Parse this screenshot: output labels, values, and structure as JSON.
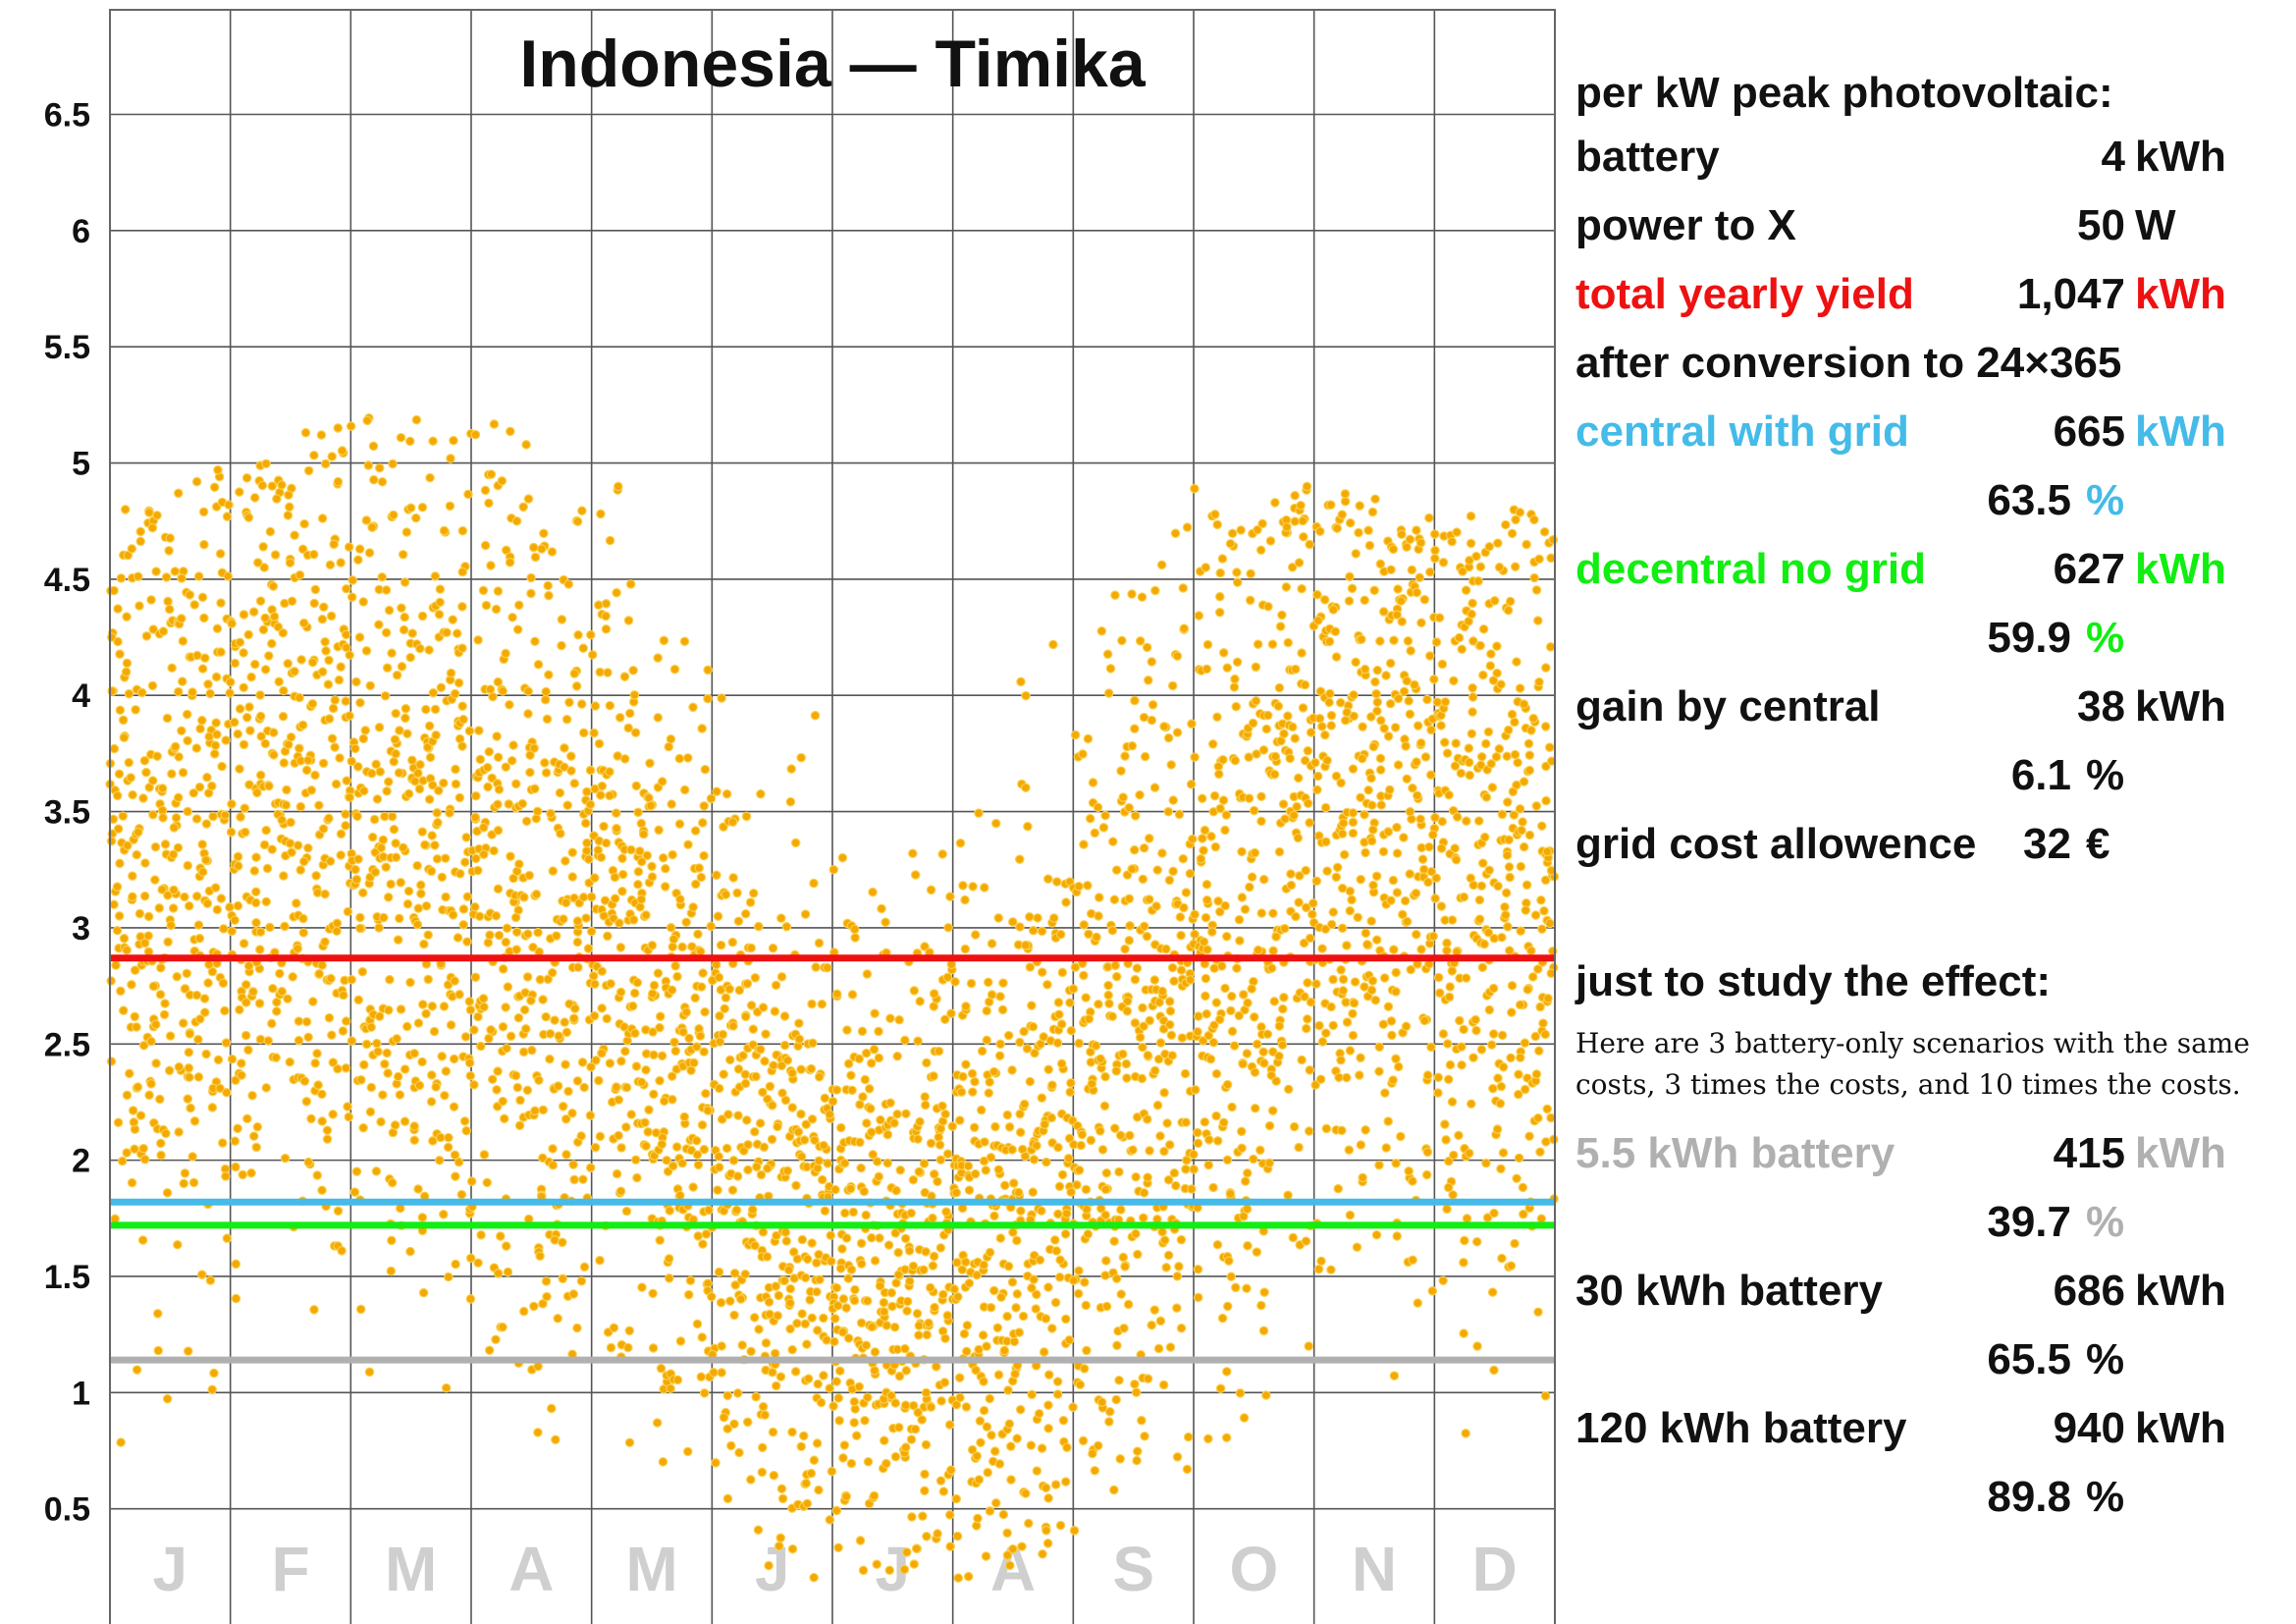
{
  "chart_data": {
    "type": "scatter",
    "title": "Indonesia — Timika",
    "xlabel": "",
    "ylabel": "",
    "x_range": [
      0,
      365
    ],
    "ylim": [
      0,
      6.95
    ],
    "y_ticks": [
      "0.5",
      "1",
      "1.5",
      "2",
      "2.5",
      "3",
      "3.5",
      "4",
      "4.5",
      "5",
      "5.5",
      "6",
      "6.5"
    ],
    "y_tick_values": [
      0.5,
      1,
      1.5,
      2,
      2.5,
      3,
      3.5,
      4,
      4.5,
      5,
      5.5,
      6,
      6.5
    ],
    "month_labels": [
      "J",
      "F",
      "M",
      "A",
      "M",
      "J",
      "J",
      "A",
      "S",
      "O",
      "N",
      "D"
    ],
    "grid": true,
    "point_color": "#f5a800",
    "point_edge_color": "#f7d050",
    "monthly_daily_yield_profile": [
      {
        "month": "J",
        "mean": 3.3,
        "spread": 1.0,
        "min": 0.7,
        "max": 4.8
      },
      {
        "month": "F",
        "mean": 3.5,
        "spread": 0.95,
        "min": 0.7,
        "max": 5.0
      },
      {
        "month": "M",
        "mean": 3.4,
        "spread": 1.0,
        "min": 1.1,
        "max": 5.2
      },
      {
        "month": "A",
        "mean": 3.1,
        "spread": 1.0,
        "min": 1.0,
        "max": 4.9
      },
      {
        "month": "M",
        "mean": 2.7,
        "spread": 0.95,
        "min": 0.4,
        "max": 4.4
      },
      {
        "month": "J",
        "mean": 1.9,
        "spread": 0.8,
        "min": 0.2,
        "max": 4.2
      },
      {
        "month": "J",
        "mean": 1.55,
        "spread": 0.75,
        "min": 0.2,
        "max": 3.8
      },
      {
        "month": "A",
        "mean": 1.8,
        "spread": 0.85,
        "min": 0.3,
        "max": 4.4
      },
      {
        "month": "S",
        "mean": 2.6,
        "spread": 1.0,
        "min": 0.6,
        "max": 4.9
      },
      {
        "month": "O",
        "mean": 3.2,
        "spread": 1.0,
        "min": 0.9,
        "max": 4.9
      },
      {
        "month": "N",
        "mean": 3.5,
        "spread": 0.95,
        "min": 0.9,
        "max": 4.8
      },
      {
        "month": "D",
        "mean": 3.3,
        "spread": 1.0,
        "min": 0.7,
        "max": 4.7
      }
    ],
    "reference_lines": [
      {
        "series": "total yearly yield",
        "y": 2.87,
        "color": "#ee1111"
      },
      {
        "series": "central with grid",
        "y": 1.82,
        "color": "#44bbe8"
      },
      {
        "series": "decentral no grid",
        "y": 1.72,
        "color": "#11ee11"
      },
      {
        "series": "5.5 kWh battery",
        "y": 1.14,
        "color": "#b0b0b0"
      }
    ]
  },
  "panel": {
    "header": "per kW peak photovoltaic:",
    "battery": {
      "label": "battery",
      "value": "4",
      "unit": "kWh"
    },
    "power_to_x": {
      "label": "power to X",
      "value": "50",
      "unit": "W"
    },
    "total_yield": {
      "label": "total yearly yield",
      "value": "1,047",
      "unit": "kWh",
      "color": "#ee1111"
    },
    "after_conversion": "after conversion to 24×365",
    "central": {
      "label": "central with grid",
      "value": "665",
      "unit": "kWh",
      "pct": "63.5",
      "pct_unit": "%",
      "color": "#44bbe8"
    },
    "decentral": {
      "label": "decentral no grid",
      "value": "627",
      "unit": "kWh",
      "pct": "59.9",
      "pct_unit": "%",
      "color": "#11ee11"
    },
    "gain": {
      "label": "gain by central",
      "value": "38",
      "unit": "kWh",
      "pct": "6.1",
      "pct_unit": "%"
    },
    "grid_cost": {
      "label": "grid cost allowence",
      "value": "32",
      "unit": "€"
    },
    "study_header": "just to study the effect:",
    "study_note_line1": "Here are 3 battery-only scenarios with the same",
    "study_note_line2": "costs, 3 times the costs, and 10 times the costs.",
    "battery_55": {
      "label": "5.5 kWh battery",
      "value": "415",
      "unit": "kWh",
      "pct": "39.7",
      "pct_unit": "%",
      "color": "#b0b0b0"
    },
    "battery_30": {
      "label": "30 kWh battery",
      "value": "686",
      "unit": "kWh",
      "pct": "65.5",
      "pct_unit": "%"
    },
    "battery_120": {
      "label": "120 kWh battery",
      "value": "940",
      "unit": "kWh",
      "pct": "89.8",
      "pct_unit": "%"
    }
  }
}
